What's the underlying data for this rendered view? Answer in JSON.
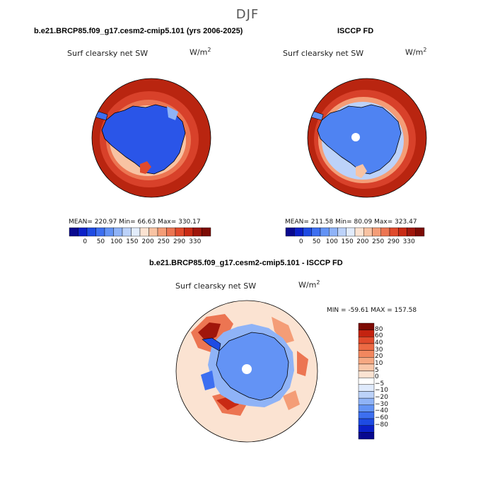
{
  "figure": {
    "title": "DJF"
  },
  "panels": {
    "model": {
      "title": "b.e21.BRCP85.f09_g17.cesm2-cmip5.101 (yrs 2006-2025)",
      "variable": "Surf clearsky net SW",
      "units_base": "W/m",
      "units_exp": "2",
      "stats": "MEAN= 220.97   Min=   66.63   Max= 330.17",
      "mean": 220.97,
      "min": 66.63,
      "max": 330.17
    },
    "obs": {
      "title": "ISCCP FD",
      "variable": "Surf clearsky net SW",
      "units_base": "W/m",
      "units_exp": "2",
      "stats": "MEAN= 211.58   Min=   80.09   Max= 323.47",
      "mean": 211.58,
      "min": 80.09,
      "max": 323.47
    },
    "diff": {
      "title": "b.e21.BRCP85.f09_g17.cesm2-cmip5.101 - ISCCP FD",
      "variable": "Surf clearsky net SW",
      "units_base": "W/m",
      "units_exp": "2",
      "stats": "MIN = -59.61  MAX = 157.58",
      "min": -59.61,
      "max": 157.58
    }
  },
  "colorbar_abs": {
    "colors": [
      "#08088f",
      "#0b20c8",
      "#1e4be3",
      "#3d6ff0",
      "#6393f5",
      "#8fb3f7",
      "#bcd2f9",
      "#e2ecfb",
      "#fbe3d2",
      "#f8c3a3",
      "#f49d77",
      "#ec7552",
      "#e04a2c",
      "#c92a14",
      "#a0160b",
      "#7d0b04"
    ],
    "tick_labels": [
      "0",
      "50",
      "100",
      "150",
      "200",
      "250",
      "290",
      "330"
    ]
  },
  "colorbar_diff": {
    "colors": [
      "#7d0b04",
      "#c42310",
      "#e04a2c",
      "#ec6a44",
      "#f2875f",
      "#f6a882",
      "#f9c7a9",
      "#fbe3d2",
      "#ffffff",
      "#dfeafc",
      "#bcd2f9",
      "#8fb3f7",
      "#6393f5",
      "#3d6ff0",
      "#1e4be3",
      "#0b20c8",
      "#08088f"
    ],
    "tick_labels": [
      "80",
      "60",
      "40",
      "30",
      "20",
      "10",
      "5",
      "0",
      "−5",
      "−10",
      "−20",
      "−30",
      "−40",
      "−60",
      "−80"
    ]
  },
  "chart_data": [
    {
      "type": "heatmap",
      "title": "b.e21.BRCP85.f09_g17.cesm2-cmip5.101 (yrs 2006-2025)",
      "projection": "south-polar-stereographic",
      "variable": "Surf clearsky net SW",
      "units": "W/m2",
      "levels": [
        0,
        25,
        50,
        75,
        100,
        125,
        150,
        175,
        200,
        225,
        250,
        270,
        290,
        310,
        330
      ],
      "mean": 220.97,
      "min": 66.63,
      "max": 330.17
    },
    {
      "type": "heatmap",
      "title": "ISCCP FD",
      "projection": "south-polar-stereographic",
      "variable": "Surf clearsky net SW",
      "units": "W/m2",
      "levels": [
        0,
        25,
        50,
        75,
        100,
        125,
        150,
        175,
        200,
        225,
        250,
        270,
        290,
        310,
        330
      ],
      "mean": 211.58,
      "min": 80.09,
      "max": 323.47
    },
    {
      "type": "heatmap",
      "title": "b.e21.BRCP85.f09_g17.cesm2-cmip5.101 - ISCCP FD",
      "projection": "south-polar-stereographic",
      "variable": "Surf clearsky net SW",
      "units": "W/m2",
      "levels": [
        -80,
        -60,
        -40,
        -30,
        -20,
        -10,
        -5,
        0,
        5,
        10,
        20,
        30,
        40,
        60,
        80
      ],
      "min": -59.61,
      "max": 157.58
    }
  ]
}
